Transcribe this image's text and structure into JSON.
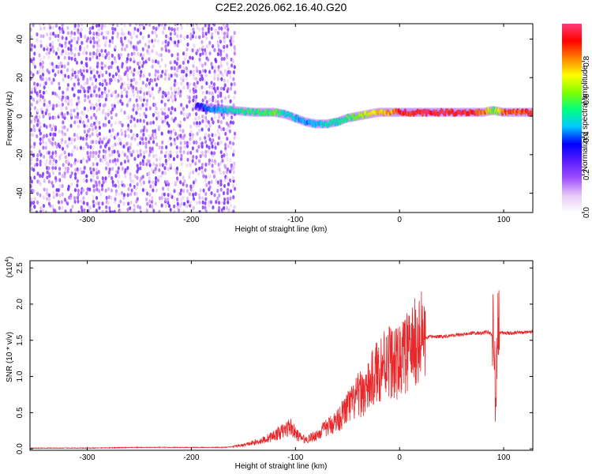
{
  "figure": {
    "title": "C2E2.2026.062.16.40.G20"
  },
  "chart_data": [
    {
      "type": "heatmap",
      "name": "spectrogram",
      "xlabel": "Height of straight line (km)",
      "ylabel": "Frequency (Hz)",
      "xlim": [
        -355,
        128
      ],
      "ylim": [
        -50,
        48
      ],
      "x_ticks": [
        -300,
        -200,
        -100,
        0,
        100
      ],
      "x_tick_labels": [
        "-300",
        "-200",
        "-100",
        "0",
        "100"
      ],
      "y_ticks": [
        -40,
        -20,
        0,
        20,
        40
      ],
      "y_tick_labels": [
        "-40",
        "-20",
        "0",
        "20",
        "40"
      ],
      "colorbar": {
        "label": "Normalized spectral amplitude",
        "range": [
          0,
          1
        ],
        "ticks": [
          0.0,
          0.2,
          0.4,
          0.6,
          0.8
        ],
        "tick_labels": [
          "0.0",
          "0.2",
          "0.4",
          "0.6",
          "0.8"
        ],
        "colors": [
          "#ffffff",
          "#e6c8f5",
          "#a050ff",
          "#5a1cff",
          "#0000ff",
          "#00c8ff",
          "#00ff80",
          "#80ff00",
          "#ffff00",
          "#ff8000",
          "#ff0000",
          "#ff3c78"
        ]
      },
      "noise_region": {
        "x": [
          -355,
          -160
        ],
        "y": [
          -50,
          48
        ],
        "amplitude": [
          0.05,
          0.25
        ]
      },
      "signal_track": {
        "x": [
          -195,
          -180,
          -160,
          -140,
          -120,
          -110,
          -100,
          -90,
          -80,
          -70,
          -60,
          -50,
          -40,
          -30,
          -20,
          -10,
          0,
          20,
          40,
          60,
          80,
          90,
          100,
          128
        ],
        "center": [
          5,
          4,
          3,
          2,
          2,
          1,
          -1,
          -3,
          -4,
          -4,
          -3,
          -1,
          0,
          1,
          2,
          2,
          2,
          2,
          2,
          2,
          2,
          3,
          2,
          2
        ],
        "amplitude": [
          0.35,
          0.45,
          0.55,
          0.6,
          0.65,
          0.55,
          0.5,
          0.45,
          0.5,
          0.55,
          0.55,
          0.6,
          0.7,
          0.75,
          0.8,
          0.85,
          0.95,
          1.0,
          1.0,
          1.0,
          0.95,
          0.6,
          0.9,
          0.95
        ]
      }
    },
    {
      "type": "line",
      "name": "snr",
      "xlabel": "Height of straight line (km)",
      "ylabel": "SNR (10 * v/v)",
      "scale_label_prefix": "(x10",
      "scale_label_exp": "4",
      "scale_label_suffix": ")",
      "xlim": [
        -355,
        128
      ],
      "ylim": [
        -0.02,
        2.6
      ],
      "x_ticks": [
        -300,
        -200,
        -100,
        0,
        100
      ],
      "x_tick_labels": [
        "-300",
        "-200",
        "-100",
        "0",
        "100"
      ],
      "y_ticks": [
        0.0,
        0.5,
        1.0,
        1.5,
        2.0,
        2.5
      ],
      "y_tick_labels": [
        "0.0",
        "0.5",
        "1.0",
        "1.5",
        "2.0",
        "2.5"
      ],
      "color": "#e8282a",
      "series": [
        {
          "x": [
            -355,
            -300,
            -250,
            -200,
            -170,
            -160,
            -150,
            -140,
            -130,
            -120,
            -110,
            -105,
            -100,
            -95,
            -90,
            -80,
            -70,
            -60,
            -55,
            -50,
            -45,
            -40,
            -35,
            -30,
            -25,
            -20,
            -15,
            -10,
            -5,
            0,
            5,
            10,
            15,
            20,
            25,
            30,
            40,
            50,
            60,
            70,
            80,
            85,
            90,
            92,
            94,
            96,
            100,
            110,
            128
          ],
          "y": [
            0.01,
            0.01,
            0.02,
            0.02,
            0.02,
            0.03,
            0.05,
            0.08,
            0.12,
            0.18,
            0.25,
            0.3,
            0.2,
            0.15,
            0.12,
            0.18,
            0.28,
            0.38,
            0.45,
            0.55,
            0.6,
            0.7,
            0.75,
            0.8,
            0.95,
            1.05,
            1.15,
            1.2,
            1.1,
            1.15,
            1.25,
            1.3,
            1.4,
            1.45,
            1.52,
            1.55,
            1.55,
            1.57,
            1.58,
            1.6,
            1.6,
            1.62,
            1.55,
            0.9,
            1.55,
            1.62,
            1.6,
            1.6,
            1.62
          ]
        }
      ]
    }
  ]
}
